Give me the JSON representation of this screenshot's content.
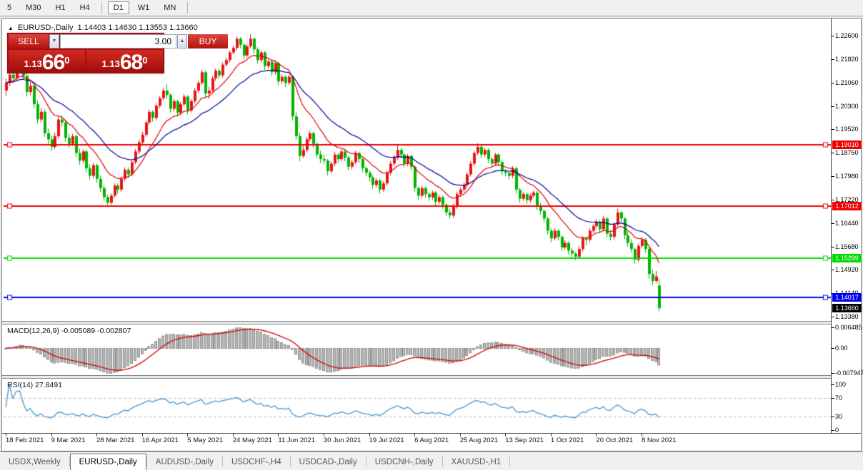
{
  "toolbar": {
    "timeframes": [
      "5",
      "M30",
      "H1",
      "H4",
      "|",
      "D1",
      "W1",
      "MN",
      "|"
    ],
    "active": "D1"
  },
  "chart": {
    "collapse_arrow": "▲",
    "symbol_title": "EURUSD-,Daily",
    "ohlc_text": "1.14403 1.14630 1.13553 1.13660",
    "trade_panel": {
      "sell_label": "SELL",
      "buy_label": "BUY",
      "volume": "3.00",
      "bid_main": "1.13",
      "bid_pips": "66",
      "bid_point": "0",
      "ask_main": "1.13",
      "ask_pips": "68",
      "ask_point": "0"
    }
  },
  "icons": {
    "spinner_up": "▲",
    "spinner_down": "▼"
  },
  "chart_data": {
    "type": "candlestick",
    "symbol": "EURUSD-",
    "timeframe": "Daily",
    "current_bar": {
      "open": 1.14403,
      "high": 1.1463,
      "low": 1.13553,
      "close": 1.1366
    },
    "up_color": "#e81414",
    "down_color": "#00b400",
    "ma_fast": {
      "period": 12,
      "color": "#dd0000"
    },
    "ma_slow": {
      "period": 26,
      "color": "#000096"
    },
    "price_axis": {
      "top_value": 1.226,
      "step": 0.0078,
      "ticks": [
        "1.22600",
        "1.21820",
        "1.21060",
        "1.20300",
        "1.19520",
        "1.18760",
        "1.17980",
        "1.17220",
        "1.16440",
        "1.15680",
        "1.14920",
        "1.14140",
        "1.13380"
      ]
    },
    "levels": [
      {
        "label": "1.19010",
        "value": 1.1901,
        "color": "#f00000"
      },
      {
        "label": "1.17012",
        "value": 1.17012,
        "color": "#f00000"
      },
      {
        "label": "1.15299",
        "value": 1.15299,
        "color": "#00dc00"
      },
      {
        "label": "1.14017",
        "value": 1.14017,
        "color": "#0000f0"
      }
    ],
    "current_price": {
      "label": "1.13660",
      "value": 1.1366,
      "color": "#000000"
    },
    "x_labels": [
      "18 Feb 2021",
      "9 Mar 2021",
      "28 Mar 2021",
      "16 Apr 2021",
      "5 May 2021",
      "24 May 2021",
      "11 Jun 2021",
      "30 Jun 2021",
      "19 Jul 2021",
      "6 Aug 2021",
      "25 Aug 2021",
      "13 Sep 2021",
      "1 Oct 2021",
      "20 Oct 2021",
      "8 Nov 2021"
    ],
    "x_label_step": 13,
    "macd": {
      "label": "MACD(12,26,9) -0.005089 -0.002807",
      "params": [
        12,
        26,
        9
      ],
      "main_value": -0.005089,
      "signal_value": -0.002807,
      "axis_ticks": [
        "0.006485",
        "0.00",
        "-0.007947"
      ],
      "hist_color": "#b8b8b8",
      "hist_edge": "#909090",
      "signal_color": "#d40000"
    },
    "rsi": {
      "label": "RSI(14) 27.8491",
      "period": 14,
      "value": 27.8491,
      "axis_ticks": [
        100,
        70,
        30,
        0
      ],
      "levels": [
        70,
        30
      ],
      "color": "#3d97d8",
      "level_color": "#bfbfbf"
    },
    "candles": [
      [
        1.208,
        1.2118,
        1.2062,
        1.2105
      ],
      [
        1.2105,
        1.215,
        1.2095,
        1.2132
      ],
      [
        1.2132,
        1.2142,
        1.2105,
        1.212
      ],
      [
        1.212,
        1.2172,
        1.2112,
        1.2158
      ],
      [
        1.2158,
        1.218,
        1.2145,
        1.2168
      ],
      [
        1.2168,
        1.2175,
        1.2115,
        1.2128
      ],
      [
        1.2128,
        1.2138,
        1.206,
        1.2075
      ],
      [
        1.2075,
        1.2108,
        1.2065,
        1.2095
      ],
      [
        1.2095,
        1.21,
        1.2022,
        1.2035
      ],
      [
        1.2035,
        1.2048,
        1.1972,
        1.1985
      ],
      [
        1.1985,
        1.2022,
        1.1975,
        1.201
      ],
      [
        1.201,
        1.2018,
        1.1928,
        1.194
      ],
      [
        1.194,
        1.1955,
        1.1905,
        1.192
      ],
      [
        1.192,
        1.1932,
        1.1882,
        1.1895
      ],
      [
        1.1895,
        1.1942,
        1.1888,
        1.193
      ],
      [
        1.193,
        1.1995,
        1.1922,
        1.1985
      ],
      [
        1.1985,
        1.1998,
        1.1962,
        1.1975
      ],
      [
        1.1975,
        1.1982,
        1.1912,
        1.1925
      ],
      [
        1.1925,
        1.1938,
        1.1892,
        1.1905
      ],
      [
        1.1905,
        1.1938,
        1.1898,
        1.193
      ],
      [
        1.193,
        1.1936,
        1.1862,
        1.1875
      ],
      [
        1.1875,
        1.1888,
        1.1836,
        1.185
      ],
      [
        1.185,
        1.1888,
        1.1842,
        1.188
      ],
      [
        1.188,
        1.1885,
        1.1812,
        1.1825
      ],
      [
        1.1825,
        1.1838,
        1.1788,
        1.18
      ],
      [
        1.18,
        1.1842,
        1.1792,
        1.1835
      ],
      [
        1.1835,
        1.184,
        1.1778,
        1.179
      ],
      [
        1.179,
        1.1802,
        1.1748,
        1.176
      ],
      [
        1.176,
        1.177,
        1.1718,
        1.173
      ],
      [
        1.173,
        1.1738,
        1.1704,
        1.1712
      ],
      [
        1.1712,
        1.1742,
        1.1706,
        1.1735
      ],
      [
        1.1735,
        1.1775,
        1.1728,
        1.1768
      ],
      [
        1.1768,
        1.1775,
        1.1742,
        1.1755
      ],
      [
        1.1755,
        1.1798,
        1.1748,
        1.179
      ],
      [
        1.179,
        1.1828,
        1.1782,
        1.182
      ],
      [
        1.182,
        1.1828,
        1.1792,
        1.1805
      ],
      [
        1.1805,
        1.1852,
        1.1798,
        1.1845
      ],
      [
        1.1845,
        1.1888,
        1.1838,
        1.188
      ],
      [
        1.188,
        1.1918,
        1.1872,
        1.191
      ],
      [
        1.191,
        1.1945,
        1.1902,
        1.1935
      ],
      [
        1.1935,
        1.1982,
        1.1928,
        1.1975
      ],
      [
        1.1975,
        1.2018,
        1.1968,
        1.201
      ],
      [
        1.201,
        1.2015,
        1.1978,
        1.199
      ],
      [
        1.199,
        1.2038,
        1.1982,
        1.203
      ],
      [
        1.203,
        1.2062,
        1.2022,
        1.2055
      ],
      [
        1.2055,
        1.2088,
        1.2048,
        1.208
      ],
      [
        1.208,
        1.21,
        1.2052,
        1.2065
      ],
      [
        1.2065,
        1.2072,
        1.2008,
        1.202
      ],
      [
        1.202,
        1.2052,
        1.2012,
        1.2045
      ],
      [
        1.2045,
        1.205,
        1.1995,
        1.2008
      ],
      [
        1.2008,
        1.2042,
        1.2,
        1.2035
      ],
      [
        1.2035,
        1.2068,
        1.2028,
        1.206
      ],
      [
        1.206,
        1.2065,
        1.2002,
        1.2015
      ],
      [
        1.2015,
        1.2052,
        1.2008,
        1.2045
      ],
      [
        1.2045,
        1.2088,
        1.2038,
        1.208
      ],
      [
        1.208,
        1.2112,
        1.2072,
        1.2105
      ],
      [
        1.2105,
        1.2148,
        1.2098,
        1.214
      ],
      [
        1.214,
        1.2145,
        1.2058,
        1.207
      ],
      [
        1.207,
        1.2092,
        1.2052,
        1.208
      ],
      [
        1.208,
        1.2128,
        1.2072,
        1.212
      ],
      [
        1.212,
        1.2152,
        1.2112,
        1.2145
      ],
      [
        1.2145,
        1.2152,
        1.2118,
        1.213
      ],
      [
        1.213,
        1.2172,
        1.2122,
        1.2165
      ],
      [
        1.2165,
        1.2188,
        1.2158,
        1.218
      ],
      [
        1.218,
        1.2212,
        1.2172,
        1.2205
      ],
      [
        1.2205,
        1.2228,
        1.2198,
        1.222
      ],
      [
        1.222,
        1.2258,
        1.2212,
        1.225
      ],
      [
        1.225,
        1.2255,
        1.2218,
        1.223
      ],
      [
        1.223,
        1.2235,
        1.2182,
        1.2195
      ],
      [
        1.2195,
        1.2232,
        1.2188,
        1.2225
      ],
      [
        1.2225,
        1.2265,
        1.2218,
        1.225
      ],
      [
        1.225,
        1.2254,
        1.2202,
        1.2215
      ],
      [
        1.2215,
        1.2222,
        1.2168,
        1.218
      ],
      [
        1.218,
        1.2212,
        1.2172,
        1.2205
      ],
      [
        1.2205,
        1.221,
        1.2148,
        1.216
      ],
      [
        1.216,
        1.2182,
        1.2152,
        1.2175
      ],
      [
        1.2175,
        1.218,
        1.2128,
        1.214
      ],
      [
        1.214,
        1.2178,
        1.2132,
        1.217
      ],
      [
        1.217,
        1.2175,
        1.2098,
        1.211
      ],
      [
        1.211,
        1.2132,
        1.2102,
        1.2125
      ],
      [
        1.2125,
        1.213,
        1.2092,
        1.2105
      ],
      [
        1.2105,
        1.2132,
        1.2098,
        1.2125
      ],
      [
        1.2125,
        1.2128,
        1.1982,
        1.1995
      ],
      [
        1.1995,
        1.2008,
        1.1918,
        1.193
      ],
      [
        1.193,
        1.1942,
        1.1848,
        1.1865
      ],
      [
        1.1865,
        1.1898,
        1.1858,
        1.1885
      ],
      [
        1.1885,
        1.1928,
        1.1878,
        1.192
      ],
      [
        1.192,
        1.1948,
        1.1912,
        1.194
      ],
      [
        1.194,
        1.1945,
        1.1892,
        1.1905
      ],
      [
        1.1905,
        1.191,
        1.1858,
        1.187
      ],
      [
        1.187,
        1.1882,
        1.1842,
        1.1855
      ],
      [
        1.1855,
        1.1868,
        1.1838,
        1.185
      ],
      [
        1.185,
        1.1855,
        1.1802,
        1.1815
      ],
      [
        1.1815,
        1.1848,
        1.1808,
        1.184
      ],
      [
        1.184,
        1.1878,
        1.1832,
        1.187
      ],
      [
        1.187,
        1.1875,
        1.1842,
        1.1855
      ],
      [
        1.1855,
        1.1888,
        1.1848,
        1.188
      ],
      [
        1.188,
        1.1885,
        1.1848,
        1.186
      ],
      [
        1.186,
        1.1865,
        1.1818,
        1.183
      ],
      [
        1.183,
        1.1852,
        1.1822,
        1.1845
      ],
      [
        1.1845,
        1.1882,
        1.1838,
        1.1875
      ],
      [
        1.1875,
        1.188,
        1.1842,
        1.1855
      ],
      [
        1.1855,
        1.186,
        1.1812,
        1.1825
      ],
      [
        1.1825,
        1.1832,
        1.1798,
        1.181
      ],
      [
        1.181,
        1.1818,
        1.1782,
        1.1795
      ],
      [
        1.1795,
        1.1802,
        1.1758,
        1.177
      ],
      [
        1.177,
        1.1792,
        1.1762,
        1.1785
      ],
      [
        1.1785,
        1.179,
        1.1742,
        1.1755
      ],
      [
        1.1755,
        1.1782,
        1.1748,
        1.1775
      ],
      [
        1.1775,
        1.1818,
        1.1768,
        1.181
      ],
      [
        1.181,
        1.1848,
        1.1802,
        1.184
      ],
      [
        1.184,
        1.1868,
        1.1832,
        1.186
      ],
      [
        1.186,
        1.1905,
        1.1852,
        1.1885
      ],
      [
        1.1885,
        1.1892,
        1.1858,
        1.187
      ],
      [
        1.187,
        1.1875,
        1.1828,
        1.184
      ],
      [
        1.184,
        1.1872,
        1.1832,
        1.1865
      ],
      [
        1.1865,
        1.187,
        1.1818,
        1.183
      ],
      [
        1.183,
        1.1835,
        1.1748,
        1.176
      ],
      [
        1.176,
        1.1765,
        1.1722,
        1.1735
      ],
      [
        1.1735,
        1.1768,
        1.1728,
        1.176
      ],
      [
        1.176,
        1.1765,
        1.1728,
        1.174
      ],
      [
        1.174,
        1.1748,
        1.1718,
        1.173
      ],
      [
        1.173,
        1.1752,
        1.1722,
        1.1745
      ],
      [
        1.1745,
        1.175,
        1.1702,
        1.1715
      ],
      [
        1.1715,
        1.1738,
        1.1708,
        1.173
      ],
      [
        1.173,
        1.1735,
        1.1692,
        1.1705
      ],
      [
        1.1705,
        1.171,
        1.1668,
        1.168
      ],
      [
        1.168,
        1.1692,
        1.166,
        1.167
      ],
      [
        1.167,
        1.1708,
        1.1662,
        1.17
      ],
      [
        1.17,
        1.1748,
        1.1692,
        1.174
      ],
      [
        1.174,
        1.1762,
        1.1732,
        1.1755
      ],
      [
        1.1755,
        1.1778,
        1.1748,
        1.177
      ],
      [
        1.177,
        1.1812,
        1.1762,
        1.1805
      ],
      [
        1.1805,
        1.1848,
        1.1798,
        1.184
      ],
      [
        1.184,
        1.1882,
        1.1832,
        1.1875
      ],
      [
        1.1875,
        1.1907,
        1.1868,
        1.1895
      ],
      [
        1.1895,
        1.19,
        1.1858,
        1.187
      ],
      [
        1.187,
        1.1892,
        1.1862,
        1.1885
      ],
      [
        1.1885,
        1.189,
        1.1842,
        1.1855
      ],
      [
        1.1855,
        1.1862,
        1.1828,
        1.184
      ],
      [
        1.184,
        1.1875,
        1.1832,
        1.187
      ],
      [
        1.187,
        1.1875,
        1.1832,
        1.1845
      ],
      [
        1.1845,
        1.185,
        1.1802,
        1.1815
      ],
      [
        1.1815,
        1.1822,
        1.1798,
        1.181
      ],
      [
        1.181,
        1.1815,
        1.1788,
        1.18
      ],
      [
        1.18,
        1.1832,
        1.1792,
        1.1825
      ],
      [
        1.1825,
        1.183,
        1.1742,
        1.1755
      ],
      [
        1.1755,
        1.176,
        1.1712,
        1.1725
      ],
      [
        1.1725,
        1.1748,
        1.1718,
        1.174
      ],
      [
        1.174,
        1.1745,
        1.1708,
        1.172
      ],
      [
        1.172,
        1.1742,
        1.1712,
        1.1735
      ],
      [
        1.1735,
        1.1752,
        1.1728,
        1.1745
      ],
      [
        1.1745,
        1.175,
        1.1688,
        1.17
      ],
      [
        1.17,
        1.1712,
        1.1672,
        1.1685
      ],
      [
        1.1685,
        1.169,
        1.1648,
        1.166
      ],
      [
        1.166,
        1.1665,
        1.1608,
        1.162
      ],
      [
        1.162,
        1.1628,
        1.1582,
        1.1595
      ],
      [
        1.1595,
        1.1628,
        1.1588,
        1.162
      ],
      [
        1.162,
        1.1625,
        1.1588,
        1.16
      ],
      [
        1.16,
        1.1605,
        1.1552,
        1.1565
      ],
      [
        1.1565,
        1.1588,
        1.1558,
        1.158
      ],
      [
        1.158,
        1.1585,
        1.1542,
        1.1555
      ],
      [
        1.1555,
        1.1562,
        1.153,
        1.1545
      ],
      [
        1.1545,
        1.155,
        1.1524,
        1.1535
      ],
      [
        1.1535,
        1.1568,
        1.1528,
        1.156
      ],
      [
        1.156,
        1.1602,
        1.1552,
        1.1595
      ],
      [
        1.1595,
        1.16,
        1.1572,
        1.159
      ],
      [
        1.159,
        1.1628,
        1.1582,
        1.162
      ],
      [
        1.162,
        1.1642,
        1.1612,
        1.1635
      ],
      [
        1.1635,
        1.1658,
        1.1628,
        1.165
      ],
      [
        1.165,
        1.1655,
        1.1612,
        1.1625
      ],
      [
        1.1625,
        1.1668,
        1.1618,
        1.166
      ],
      [
        1.166,
        1.1665,
        1.1598,
        1.161
      ],
      [
        1.161,
        1.1622,
        1.1588,
        1.16
      ],
      [
        1.16,
        1.1648,
        1.1592,
        1.164
      ],
      [
        1.164,
        1.1692,
        1.1632,
        1.168
      ],
      [
        1.168,
        1.1685,
        1.1648,
        1.166
      ],
      [
        1.166,
        1.1665,
        1.1592,
        1.1605
      ],
      [
        1.1605,
        1.1618,
        1.1568,
        1.158
      ],
      [
        1.158,
        1.1592,
        1.1548,
        1.156
      ],
      [
        1.156,
        1.1565,
        1.1512,
        1.1525
      ],
      [
        1.1525,
        1.1578,
        1.1518,
        1.157
      ],
      [
        1.157,
        1.1598,
        1.1562,
        1.159
      ],
      [
        1.159,
        1.1595,
        1.1548,
        1.156
      ],
      [
        1.156,
        1.1565,
        1.1462,
        1.1478
      ],
      [
        1.1478,
        1.1492,
        1.1442,
        1.1455
      ],
      [
        1.1455,
        1.1488,
        1.1448,
        1.147
      ],
      [
        1.144,
        1.1463,
        1.1355,
        1.1366
      ]
    ]
  },
  "bottom_tabs": {
    "items": [
      "USDX,Weekly",
      "EURUSD-,Daily",
      "AUDUSD-,Daily",
      "USDCHF-,H4",
      "USDCAD-,Daily",
      "USDCNH-,Daily",
      "XAUUSD-,H1"
    ],
    "active_index": 1
  }
}
